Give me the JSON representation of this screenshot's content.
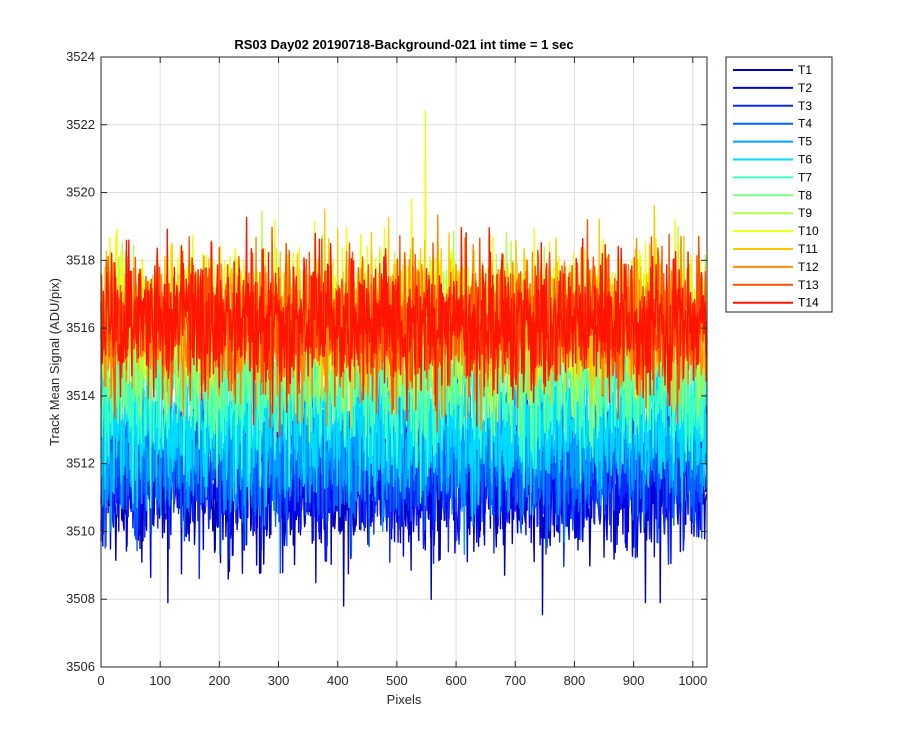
{
  "chart_data": {
    "type": "line",
    "title": "RS03 Day02 20190718-Background-021 int time = 1 sec",
    "xlabel": "Pixels",
    "ylabel": "Track Mean Signal (ADU/pix)",
    "xlim": [
      0,
      1024
    ],
    "ylim": [
      3506,
      3524
    ],
    "xticks": [
      0,
      100,
      200,
      300,
      400,
      500,
      600,
      700,
      800,
      900,
      1000
    ],
    "yticks": [
      3506,
      3508,
      3510,
      3512,
      3514,
      3516,
      3518,
      3520,
      3522,
      3524
    ],
    "grid": true,
    "legend_position": "outside-top-right",
    "n_points": 1024,
    "series": [
      {
        "name": "T1",
        "color": "#0000b3",
        "mean": 3511.3,
        "noise": 1.0
      },
      {
        "name": "T2",
        "color": "#0000ef",
        "mean": 3511.6,
        "noise": 1.0
      },
      {
        "name": "T3",
        "color": "#0a28ff",
        "mean": 3511.9,
        "noise": 1.0
      },
      {
        "name": "T4",
        "color": "#0064ff",
        "mean": 3512.2,
        "noise": 1.0
      },
      {
        "name": "T5",
        "color": "#00a0ff",
        "mean": 3512.6,
        "noise": 1.0
      },
      {
        "name": "T6",
        "color": "#00dcff",
        "mean": 3513.2,
        "noise": 1.0
      },
      {
        "name": "T7",
        "color": "#3cffc3",
        "mean": 3514.2,
        "noise": 1.0
      },
      {
        "name": "T8",
        "color": "#78ff87",
        "mean": 3515.0,
        "noise": 1.0
      },
      {
        "name": "T9",
        "color": "#b4ff4b",
        "mean": 3516.0,
        "noise": 1.0
      },
      {
        "name": "T10",
        "color": "#f0ff0f",
        "mean": 3516.5,
        "noise": 1.0
      },
      {
        "name": "T11",
        "color": "#ffc800",
        "mean": 3516.3,
        "noise": 1.0
      },
      {
        "name": "T12",
        "color": "#ff8c00",
        "mean": 3516.0,
        "noise": 1.0
      },
      {
        "name": "T13",
        "color": "#ff5000",
        "mean": 3516.1,
        "noise": 1.0
      },
      {
        "name": "T14",
        "color": "#ff1400",
        "mean": 3516.2,
        "noise": 1.0
      }
    ],
    "annotations": [
      {
        "series": "T10",
        "x": 548,
        "y": 3522.4
      },
      {
        "series": "T1",
        "x": 410,
        "y": 3507.8
      },
      {
        "series": "T1",
        "x": 920,
        "y": 3507.9
      },
      {
        "series": "T1",
        "x": 945,
        "y": 3507.9
      }
    ]
  }
}
